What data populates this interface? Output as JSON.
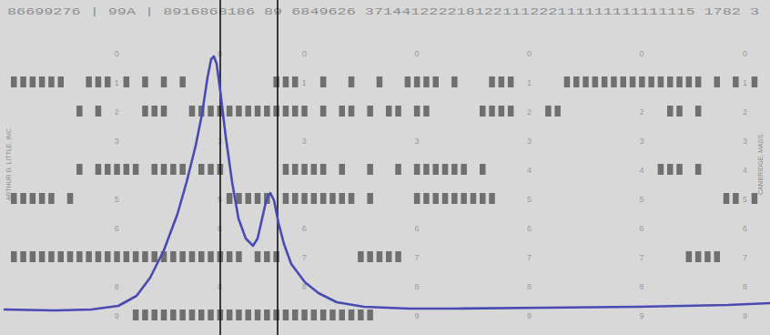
{
  "chart_data": {
    "type": "line",
    "x": [
      5,
      60,
      100,
      130,
      150,
      165,
      180,
      195,
      205,
      215,
      222,
      228,
      232,
      235,
      238,
      242,
      248,
      255,
      262,
      270,
      278,
      283,
      288,
      293,
      297,
      301,
      306,
      312,
      320,
      335,
      350,
      370,
      400,
      450,
      500,
      600,
      700,
      800,
      846
    ],
    "series": [
      {
        "color": "#4a4ab4",
        "values": [
          28,
          27,
          28,
          32,
          43,
          63,
          93,
          133,
          168,
          208,
          243,
          283,
          303,
          306,
          298,
          268,
          218,
          168,
          128,
          106,
          98,
          106,
          128,
          150,
          156,
          148,
          123,
          100,
          78,
          58,
          46,
          36,
          31,
          29,
          29,
          30,
          31,
          33,
          35
        ]
      }
    ],
    "xlim": [
      0,
      846
    ],
    "ylim": [
      0,
      368
    ],
    "vlines": [
      242,
      305
    ],
    "tick_labels": false,
    "grid": false
  },
  "card": {
    "header": "86699276 | 99A | 8916868186 89 6849626 371441222218122111222111111111111115 1782 3",
    "left_text": "ARTHUR D. LITTLE, INC.",
    "right_text": "CAMBRIDGE, MASS.",
    "rows": [
      {
        "digit": "0",
        "punches": []
      },
      {
        "digit": "1",
        "punches": [
          [
            0,
            5
          ],
          [
            8,
            10
          ],
          [
            12,
            12
          ],
          [
            14,
            14
          ],
          [
            16,
            16
          ],
          [
            18,
            18
          ],
          [
            28,
            30
          ],
          [
            33,
            33
          ],
          [
            36,
            36
          ],
          [
            39,
            39
          ],
          [
            42,
            45
          ],
          [
            47,
            47
          ],
          [
            51,
            53
          ],
          [
            59,
            73
          ],
          [
            75,
            75
          ],
          [
            77,
            77
          ],
          [
            79,
            79
          ]
        ]
      },
      {
        "digit": "2",
        "punches": [
          [
            7,
            7
          ],
          [
            9,
            9
          ],
          [
            14,
            16
          ],
          [
            19,
            31
          ],
          [
            33,
            33
          ],
          [
            35,
            36
          ],
          [
            38,
            38
          ],
          [
            40,
            41
          ],
          [
            43,
            44
          ],
          [
            50,
            53
          ],
          [
            57,
            58
          ],
          [
            70,
            71
          ],
          [
            73,
            73
          ]
        ]
      },
      {
        "digit": "3",
        "punches": []
      },
      {
        "digit": "4",
        "punches": [
          [
            7,
            7
          ],
          [
            9,
            13
          ],
          [
            15,
            18
          ],
          [
            20,
            22
          ],
          [
            29,
            33
          ],
          [
            35,
            35
          ],
          [
            38,
            38
          ],
          [
            41,
            41
          ],
          [
            43,
            48
          ],
          [
            50,
            50
          ],
          [
            69,
            71
          ],
          [
            73,
            73
          ]
        ]
      },
      {
        "digit": "5",
        "punches": [
          [
            0,
            4
          ],
          [
            6,
            6
          ],
          [
            23,
            27
          ],
          [
            29,
            36
          ],
          [
            38,
            38
          ],
          [
            43,
            51
          ],
          [
            76,
            77
          ],
          [
            79,
            79
          ]
        ]
      },
      {
        "digit": "6",
        "punches": []
      },
      {
        "digit": "7",
        "punches": [
          [
            0,
            24
          ],
          [
            26,
            28
          ],
          [
            37,
            41
          ],
          [
            72,
            75
          ]
        ]
      },
      {
        "digit": "8",
        "punches": []
      },
      {
        "digit": "9",
        "punches": [
          [
            13,
            38
          ]
        ]
      }
    ]
  }
}
